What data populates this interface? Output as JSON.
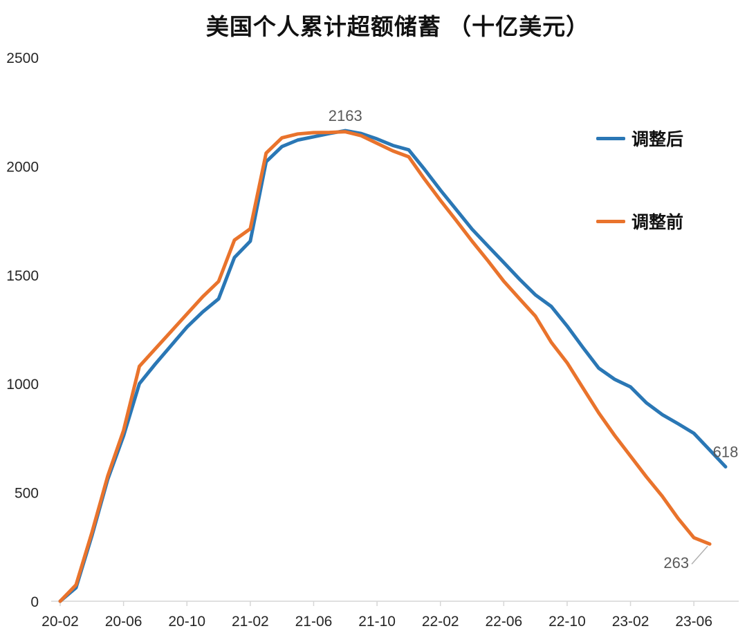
{
  "chart_data": {
    "type": "line",
    "title": "美国个人累计超额储蓄 （十亿美元）",
    "xlabel": "",
    "ylabel": "",
    "ylim": [
      0,
      2500
    ],
    "y_ticks": [
      0,
      500,
      1000,
      1500,
      2000,
      2500
    ],
    "x_tick_every": 4,
    "grid": false,
    "legend_position": "right",
    "categories": [
      "20-02",
      "20-03",
      "20-04",
      "20-05",
      "20-06",
      "20-07",
      "20-08",
      "20-09",
      "20-10",
      "20-11",
      "20-12",
      "21-01",
      "21-02",
      "21-03",
      "21-04",
      "21-05",
      "21-06",
      "21-07",
      "21-08",
      "21-09",
      "21-10",
      "21-11",
      "21-12",
      "22-01",
      "22-02",
      "22-03",
      "22-04",
      "22-05",
      "22-06",
      "22-07",
      "22-08",
      "22-09",
      "22-10",
      "22-11",
      "22-12",
      "23-01",
      "23-02",
      "23-03",
      "23-04",
      "23-05",
      "23-06",
      "23-07",
      "23-08"
    ],
    "series": [
      {
        "name": "调整后",
        "color": "#2A77B5",
        "values": [
          0,
          62,
          300,
          560,
          760,
          1000,
          1090,
          1175,
          1260,
          1330,
          1390,
          1580,
          1655,
          2020,
          2090,
          2120,
          2135,
          2150,
          2163,
          2150,
          2125,
          2095,
          2075,
          1985,
          1890,
          1800,
          1710,
          1633,
          1557,
          1480,
          1408,
          1355,
          1265,
          1166,
          1071,
          1020,
          985,
          912,
          858,
          816,
          772,
          695,
          618
        ]
      },
      {
        "name": "调整前",
        "color": "#E9732C",
        "values": [
          0,
          75,
          315,
          575,
          785,
          1080,
          1160,
          1240,
          1320,
          1400,
          1470,
          1660,
          1712,
          2060,
          2130,
          2148,
          2154,
          2155,
          2158,
          2140,
          2105,
          2070,
          2043,
          1940,
          1843,
          1750,
          1655,
          1565,
          1471,
          1390,
          1310,
          1190,
          1096,
          980,
          865,
          762,
          667,
          572,
          483,
          381,
          292,
          263
        ]
      }
    ],
    "annotations": [
      {
        "text": "2163",
        "series_index": 0,
        "category": "21-08",
        "value": 2163,
        "placement": "above"
      },
      {
        "text": "618",
        "series_index": 0,
        "category": "23-08",
        "value": 618,
        "placement": "above"
      },
      {
        "text": "263",
        "series_index": 1,
        "category": "23-07",
        "value": 263,
        "placement": "leader-left"
      }
    ],
    "colors": {
      "axis": "#D6D6D6",
      "tick_label": "#262626",
      "annotation": "#595959",
      "leader": "#B0B0B0",
      "background": "#FFFFFF"
    }
  }
}
